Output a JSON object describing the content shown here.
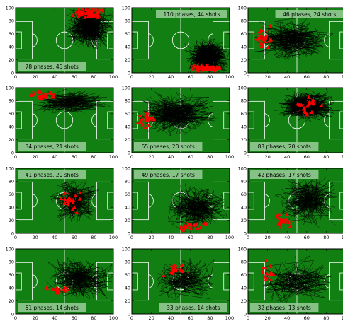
{
  "chart_data": {
    "type": "small-multiples pitch trajectory plot",
    "grid_rows": 4,
    "grid_cols": 3,
    "x_range": [
      0,
      100
    ],
    "y_range": [
      0,
      100
    ],
    "x_ticks": [
      0,
      20,
      40,
      60,
      80,
      100
    ],
    "y_ticks": [
      0,
      20,
      40,
      60,
      80,
      100
    ],
    "colors": {
      "pitch": "#117f11",
      "trajectory": "#000000",
      "shot_marker": "#ff0000",
      "pitch_lines": "#ffffff",
      "label_box": "#90c890"
    },
    "panels": [
      {
        "label": "78 phases, 45 shots",
        "label_position": "bottom-left",
        "density": 0.45,
        "cluster": {
          "x": 75,
          "y": 70,
          "spread_x": 18,
          "spread_y": 25
        },
        "shots": {
          "x": 75,
          "y": 92,
          "spread_x": 15,
          "spread_y": 8
        }
      },
      {
        "label": "110 phases, 44 shots",
        "label_position": "top-right",
        "density": 0.5,
        "cluster": {
          "x": 78,
          "y": 25,
          "spread_x": 16,
          "spread_y": 20
        },
        "shots": {
          "x": 75,
          "y": 8,
          "spread_x": 15,
          "spread_y": 6
        }
      },
      {
        "label": "46 phases, 24 shots",
        "label_position": "top-right",
        "density": 0.45,
        "cluster": {
          "x": 45,
          "y": 50,
          "spread_x": 30,
          "spread_y": 25
        },
        "shots": {
          "x": 15,
          "y": 55,
          "spread_x": 8,
          "spread_y": 15
        }
      },
      {
        "label": "34 phases, 21 shots",
        "label_position": "bottom-left",
        "density": 0.35,
        "cluster": {
          "x": 55,
          "y": 78,
          "spread_x": 30,
          "spread_y": 15
        },
        "shots": {
          "x": 30,
          "y": 88,
          "spread_x": 15,
          "spread_y": 8
        }
      },
      {
        "label": "55 phases, 20 shots",
        "label_position": "bottom-left",
        "density": 0.4,
        "cluster": {
          "x": 45,
          "y": 60,
          "spread_x": 30,
          "spread_y": 25
        },
        "shots": {
          "x": 15,
          "y": 50,
          "spread_x": 8,
          "spread_y": 10
        }
      },
      {
        "label": "83 phases, 20 shots",
        "label_position": "bottom-left",
        "density": 0.4,
        "cluster": {
          "x": 60,
          "y": 72,
          "spread_x": 22,
          "spread_y": 18
        },
        "shots": {
          "x": 60,
          "y": 75,
          "spread_x": 12,
          "spread_y": 15
        }
      },
      {
        "label": "41 phases, 20 shots",
        "label_position": "top-left",
        "density": 0.35,
        "cluster": {
          "x": 60,
          "y": 50,
          "spread_x": 18,
          "spread_y": 25
        },
        "shots": {
          "x": 55,
          "y": 50,
          "spread_x": 12,
          "spread_y": 20
        }
      },
      {
        "label": "49 phases, 17 shots",
        "label_position": "top-left",
        "density": 0.35,
        "cluster": {
          "x": 65,
          "y": 40,
          "spread_x": 22,
          "spread_y": 25
        },
        "shots": {
          "x": 60,
          "y": 10,
          "spread_x": 15,
          "spread_y": 6
        }
      },
      {
        "label": "42 phases, 17 shots",
        "label_position": "top-left",
        "density": 0.4,
        "cluster": {
          "x": 60,
          "y": 50,
          "spread_x": 25,
          "spread_y": 28
        },
        "shots": {
          "x": 35,
          "y": 22,
          "spread_x": 10,
          "spread_y": 15
        }
      },
      {
        "label": "51 phases, 14 shots",
        "label_position": "bottom-left",
        "density": 0.4,
        "cluster": {
          "x": 65,
          "y": 55,
          "spread_x": 25,
          "spread_y": 25
        },
        "shots": {
          "x": 45,
          "y": 38,
          "spread_x": 15,
          "spread_y": 6
        }
      },
      {
        "label": "33 phases, 14 shots",
        "label_position": "bottom-right",
        "density": 0.35,
        "cluster": {
          "x": 55,
          "y": 55,
          "spread_x": 25,
          "spread_y": 25
        },
        "shots": {
          "x": 45,
          "y": 70,
          "spread_x": 12,
          "spread_y": 10
        }
      },
      {
        "label": "32 phases, 13 shots",
        "label_position": "bottom-left",
        "density": 0.35,
        "cluster": {
          "x": 50,
          "y": 50,
          "spread_x": 28,
          "spread_y": 28
        },
        "shots": {
          "x": 20,
          "y": 65,
          "spread_x": 12,
          "spread_y": 18
        }
      }
    ]
  }
}
